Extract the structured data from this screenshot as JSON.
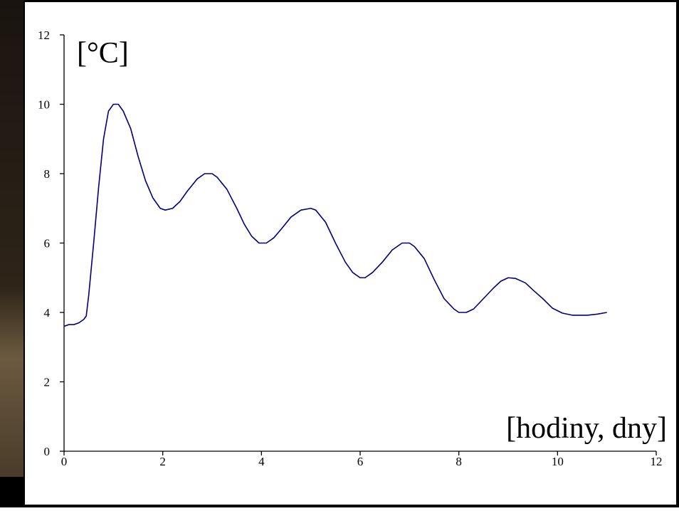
{
  "chart_data": {
    "type": "line",
    "y_label": "[°C]",
    "x_label": "[hodiny, dny]",
    "xlim": [
      0,
      12
    ],
    "xticks": [
      0,
      2,
      4,
      6,
      8,
      10,
      12
    ],
    "ylim": [
      0,
      12
    ],
    "yticks": [
      0,
      2,
      4,
      6,
      8,
      10,
      12
    ],
    "grid": false,
    "series": [
      {
        "color": "#000080",
        "x": [
          0,
          0.1,
          0.2,
          0.3,
          0.4,
          0.45,
          0.5,
          0.6,
          0.7,
          0.8,
          0.9,
          1.0,
          1.1,
          1.2,
          1.35,
          1.5,
          1.65,
          1.8,
          1.95,
          2.05,
          2.2,
          2.35,
          2.5,
          2.7,
          2.85,
          3.0,
          3.1,
          3.3,
          3.5,
          3.65,
          3.8,
          3.95,
          4.1,
          4.25,
          4.4,
          4.6,
          4.8,
          5.0,
          5.1,
          5.3,
          5.5,
          5.7,
          5.85,
          6.0,
          6.1,
          6.25,
          6.45,
          6.65,
          6.85,
          7.0,
          7.1,
          7.3,
          7.5,
          7.7,
          7.9,
          8.0,
          8.15,
          8.3,
          8.5,
          8.7,
          8.85,
          9.0,
          9.15,
          9.35,
          9.5,
          9.7,
          9.9,
          10.1,
          10.3,
          10.6,
          10.8,
          11.0
        ],
        "values": [
          3.6,
          3.65,
          3.65,
          3.7,
          3.8,
          3.9,
          4.5,
          6.0,
          7.6,
          9.0,
          9.8,
          10.0,
          10.0,
          9.8,
          9.3,
          8.5,
          7.8,
          7.3,
          7.0,
          6.95,
          7.0,
          7.2,
          7.5,
          7.85,
          8.0,
          8.0,
          7.9,
          7.55,
          7.0,
          6.55,
          6.2,
          6.0,
          6.0,
          6.15,
          6.4,
          6.75,
          6.95,
          7.0,
          6.95,
          6.6,
          6.0,
          5.45,
          5.15,
          5.0,
          5.0,
          5.15,
          5.45,
          5.8,
          6.0,
          6.0,
          5.9,
          5.55,
          4.95,
          4.4,
          4.1,
          4.0,
          4.0,
          4.1,
          4.4,
          4.7,
          4.9,
          5.0,
          4.98,
          4.85,
          4.65,
          4.4,
          4.12,
          3.98,
          3.92,
          3.92,
          3.95,
          4.0
        ]
      }
    ]
  }
}
